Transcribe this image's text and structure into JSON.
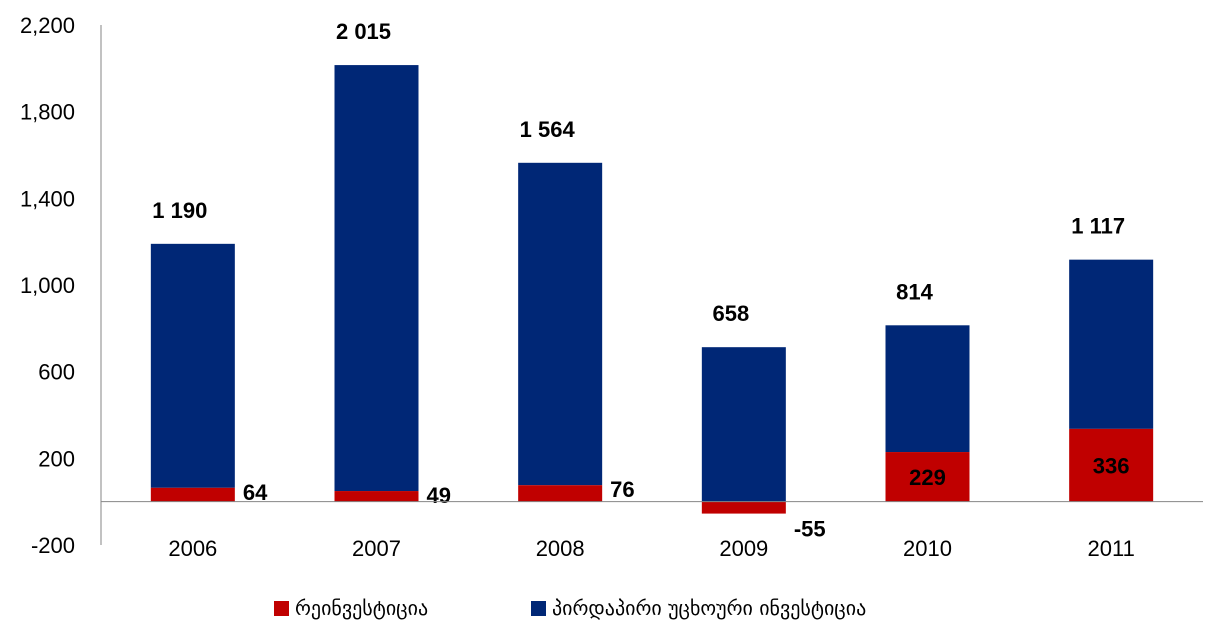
{
  "chart_data": {
    "type": "bar",
    "stacked": true,
    "title": "",
    "xlabel": "",
    "ylabel": "",
    "categories": [
      "2006",
      "2007",
      "2008",
      "2009",
      "2010",
      "2011"
    ],
    "ylim": [
      -200,
      2200
    ],
    "yticks": [
      -200,
      200,
      600,
      1000,
      1400,
      1800,
      2200
    ],
    "ytick_labels": [
      "-200",
      "200",
      "600",
      "1,000",
      "1,400",
      "1,800",
      "2,200"
    ],
    "grid": false,
    "legend_position": "bottom",
    "series": [
      {
        "name": "რეინვესტიცია",
        "color": "#C00000",
        "values": [
          64,
          49,
          76,
          -55,
          229,
          336
        ],
        "labels": [
          "64",
          "49",
          "76",
          "-55",
          "229",
          "336"
        ]
      },
      {
        "name": "პირდაპირი უცხოური ინვესტიცია",
        "color": "#002776",
        "values": [
          1126,
          1966,
          1488,
          713,
          585,
          781
        ],
        "total_labels": [
          "1 190",
          "2 015",
          "1 564",
          "658",
          "814",
          "1 117"
        ]
      }
    ]
  }
}
